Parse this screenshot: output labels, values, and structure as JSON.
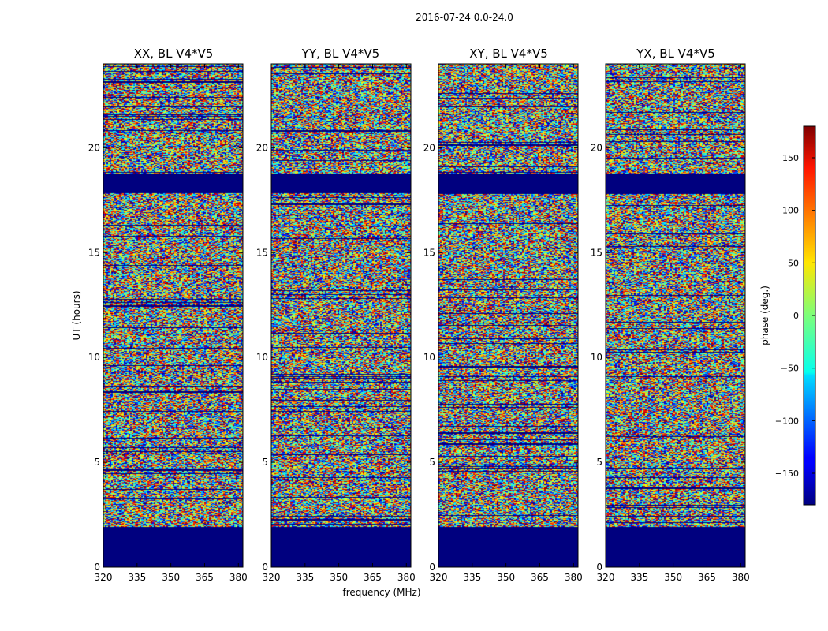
{
  "chart_data": {
    "type": "heatmap",
    "title": "2016-07-24 0.0-24.0",
    "xlabel": "frequency (MHz)",
    "ylabel": "UT (hours)",
    "xlim": [
      320,
      382
    ],
    "ylim": [
      0,
      24
    ],
    "xticks": [
      "320",
      "335",
      "350",
      "365",
      "380"
    ],
    "yticks": [
      "0",
      "5",
      "10",
      "15",
      "20"
    ],
    "panels": [
      {
        "title": "XX, BL V4*V5",
        "polarization": "XX"
      },
      {
        "title": "YY, BL V4*V5",
        "polarization": "YY"
      },
      {
        "title": "XY, BL V4*V5",
        "polarization": "XY"
      },
      {
        "title": "YX, BL V4*V5",
        "polarization": "YX"
      }
    ],
    "colorbar": {
      "label": "phase (deg.)",
      "range": [
        -180,
        180
      ],
      "ticks": [
        "150",
        "100",
        "50",
        "0",
        "−50",
        "−100",
        "−150"
      ],
      "colormap": "jet"
    },
    "flagged_ut_ranges": [
      [
        0.0,
        1.95
      ],
      [
        18.8,
        17.85
      ]
    ],
    "accent_colors": {
      "flagged": "#00007f",
      "low": "#00007f",
      "high": "#7f0000"
    }
  }
}
